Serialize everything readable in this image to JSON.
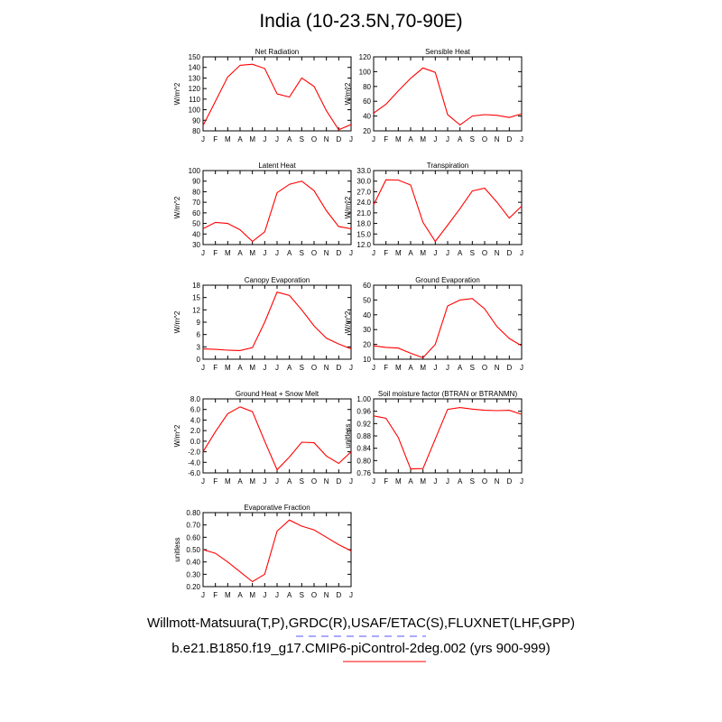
{
  "title": "India (10-23.5N,70-90E)",
  "months": [
    "J",
    "F",
    "M",
    "A",
    "M",
    "J",
    "J",
    "A",
    "S",
    "O",
    "N",
    "D",
    "J"
  ],
  "legend": {
    "obs_label": "Willmott-Matsuura(T,P),GRDC(R),USAF/ETAC(S),FLUXNET(LHF,GPP)",
    "obs_color": "#5555ff",
    "model_label": "b.e21.B1850.f19_g17.CMIP6-piControl-2deg.002 (yrs 900-999)",
    "model_color": "#ff0000"
  },
  "chart_data": [
    {
      "type": "line",
      "title": "Net Radiation",
      "ylabel": "W/m^2",
      "ylim": [
        80,
        150
      ],
      "yticks": [
        "80",
        "90",
        "100",
        "110",
        "120",
        "130",
        "140",
        "150"
      ],
      "categories": [
        "J",
        "F",
        "M",
        "A",
        "M",
        "J",
        "J",
        "A",
        "S",
        "O",
        "N",
        "D",
        "J"
      ],
      "values": [
        85,
        108,
        131,
        142,
        143,
        139,
        115,
        112,
        130,
        122,
        99,
        81,
        86
      ]
    },
    {
      "type": "line",
      "title": "Sensible Heat",
      "ylabel": "W/m^2",
      "ylim": [
        20,
        120
      ],
      "yticks": [
        "20",
        "40",
        "60",
        "80",
        "100",
        "120"
      ],
      "categories": [
        "J",
        "F",
        "M",
        "A",
        "M",
        "J",
        "J",
        "A",
        "S",
        "O",
        "N",
        "D",
        "J"
      ],
      "values": [
        44,
        56,
        74,
        91,
        105,
        99,
        42,
        28,
        40,
        42,
        41,
        38,
        43
      ]
    },
    {
      "type": "line",
      "title": "Latent Heat",
      "ylabel": "W/m^2",
      "ylim": [
        30,
        100
      ],
      "yticks": [
        "30",
        "40",
        "50",
        "60",
        "70",
        "80",
        "90",
        "100"
      ],
      "categories": [
        "J",
        "F",
        "M",
        "A",
        "M",
        "J",
        "J",
        "A",
        "S",
        "O",
        "N",
        "D",
        "J"
      ],
      "values": [
        45,
        51,
        50,
        44,
        33,
        42,
        79,
        87,
        90,
        81,
        62,
        47,
        45
      ]
    },
    {
      "type": "line",
      "title": "Transpiration",
      "ylabel": "W/m^2",
      "ylim": [
        12,
        33
      ],
      "yticks": [
        "12.0",
        "15.0",
        "18.0",
        "21.0",
        "24.0",
        "27.0",
        "30.0",
        "33.0"
      ],
      "categories": [
        "J",
        "F",
        "M",
        "A",
        "M",
        "J",
        "J",
        "A",
        "S",
        "O",
        "N",
        "D",
        "J"
      ],
      "values": [
        23.3,
        30.4,
        30.3,
        28.9,
        18.3,
        12.9,
        17.5,
        22.2,
        27.2,
        28.0,
        24.0,
        19.5,
        22.9
      ]
    },
    {
      "type": "line",
      "title": "Canopy Evaporation",
      "ylabel": "W/m^2",
      "ylim": [
        0,
        18
      ],
      "yticks": [
        "0",
        "3",
        "6",
        "9",
        "12",
        "15",
        "18"
      ],
      "categories": [
        "J",
        "F",
        "M",
        "A",
        "M",
        "J",
        "J",
        "A",
        "S",
        "O",
        "N",
        "D",
        "J"
      ],
      "values": [
        2.5,
        2.4,
        2.2,
        2.1,
        2.8,
        9.0,
        16.3,
        15.5,
        12.0,
        8.1,
        5.1,
        3.7,
        2.5
      ]
    },
    {
      "type": "line",
      "title": "Ground Evaporation",
      "ylabel": "W/m^2",
      "ylim": [
        10,
        60
      ],
      "yticks": [
        "10",
        "20",
        "30",
        "40",
        "50",
        "60"
      ],
      "categories": [
        "J",
        "F",
        "M",
        "A",
        "M",
        "J",
        "J",
        "A",
        "S",
        "O",
        "N",
        "D",
        "J"
      ],
      "values": [
        19,
        18,
        17.5,
        14,
        11,
        20,
        46,
        50,
        51,
        44,
        32,
        24,
        19
      ]
    },
    {
      "type": "line",
      "title": "Ground Heat + Snow Melt",
      "ylabel": "W/m^2",
      "ylim": [
        -6,
        8
      ],
      "yticks": [
        "-6.0",
        "-4.0",
        "-2.0",
        "0.0",
        "2.0",
        "4.0",
        "6.0",
        "8.0"
      ],
      "categories": [
        "J",
        "F",
        "M",
        "A",
        "M",
        "J",
        "J",
        "A",
        "S",
        "O",
        "N",
        "D",
        "J"
      ],
      "values": [
        -2.0,
        1.8,
        5.2,
        6.5,
        5.6,
        0.0,
        -5.4,
        -3.0,
        -0.2,
        -0.3,
        -2.8,
        -4.2,
        -2.0
      ]
    },
    {
      "type": "line",
      "title": "Soil moisture factor (BTRAN or BTRANMN)",
      "ylabel": "unitless",
      "ylim": [
        0.76,
        1.0
      ],
      "yticks": [
        "0.76",
        "0.80",
        "0.84",
        "0.88",
        "0.92",
        "0.96",
        "1.00"
      ],
      "categories": [
        "J",
        "F",
        "M",
        "A",
        "M",
        "J",
        "J",
        "A",
        "S",
        "O",
        "N",
        "D",
        "J"
      ],
      "values": [
        0.945,
        0.937,
        0.875,
        0.773,
        0.774,
        0.87,
        0.966,
        0.972,
        0.967,
        0.963,
        0.962,
        0.963,
        0.95
      ]
    },
    {
      "type": "line",
      "title": "Evaporative Fraction",
      "ylabel": "unitless",
      "ylim": [
        0.2,
        0.8
      ],
      "yticks": [
        "0.20",
        "0.30",
        "0.40",
        "0.50",
        "0.60",
        "0.70",
        "0.80"
      ],
      "categories": [
        "J",
        "F",
        "M",
        "A",
        "M",
        "J",
        "J",
        "A",
        "S",
        "O",
        "N",
        "D",
        "J"
      ],
      "values": [
        0.5,
        0.47,
        0.4,
        0.32,
        0.24,
        0.3,
        0.65,
        0.74,
        0.69,
        0.66,
        0.6,
        0.54,
        0.49
      ]
    }
  ]
}
